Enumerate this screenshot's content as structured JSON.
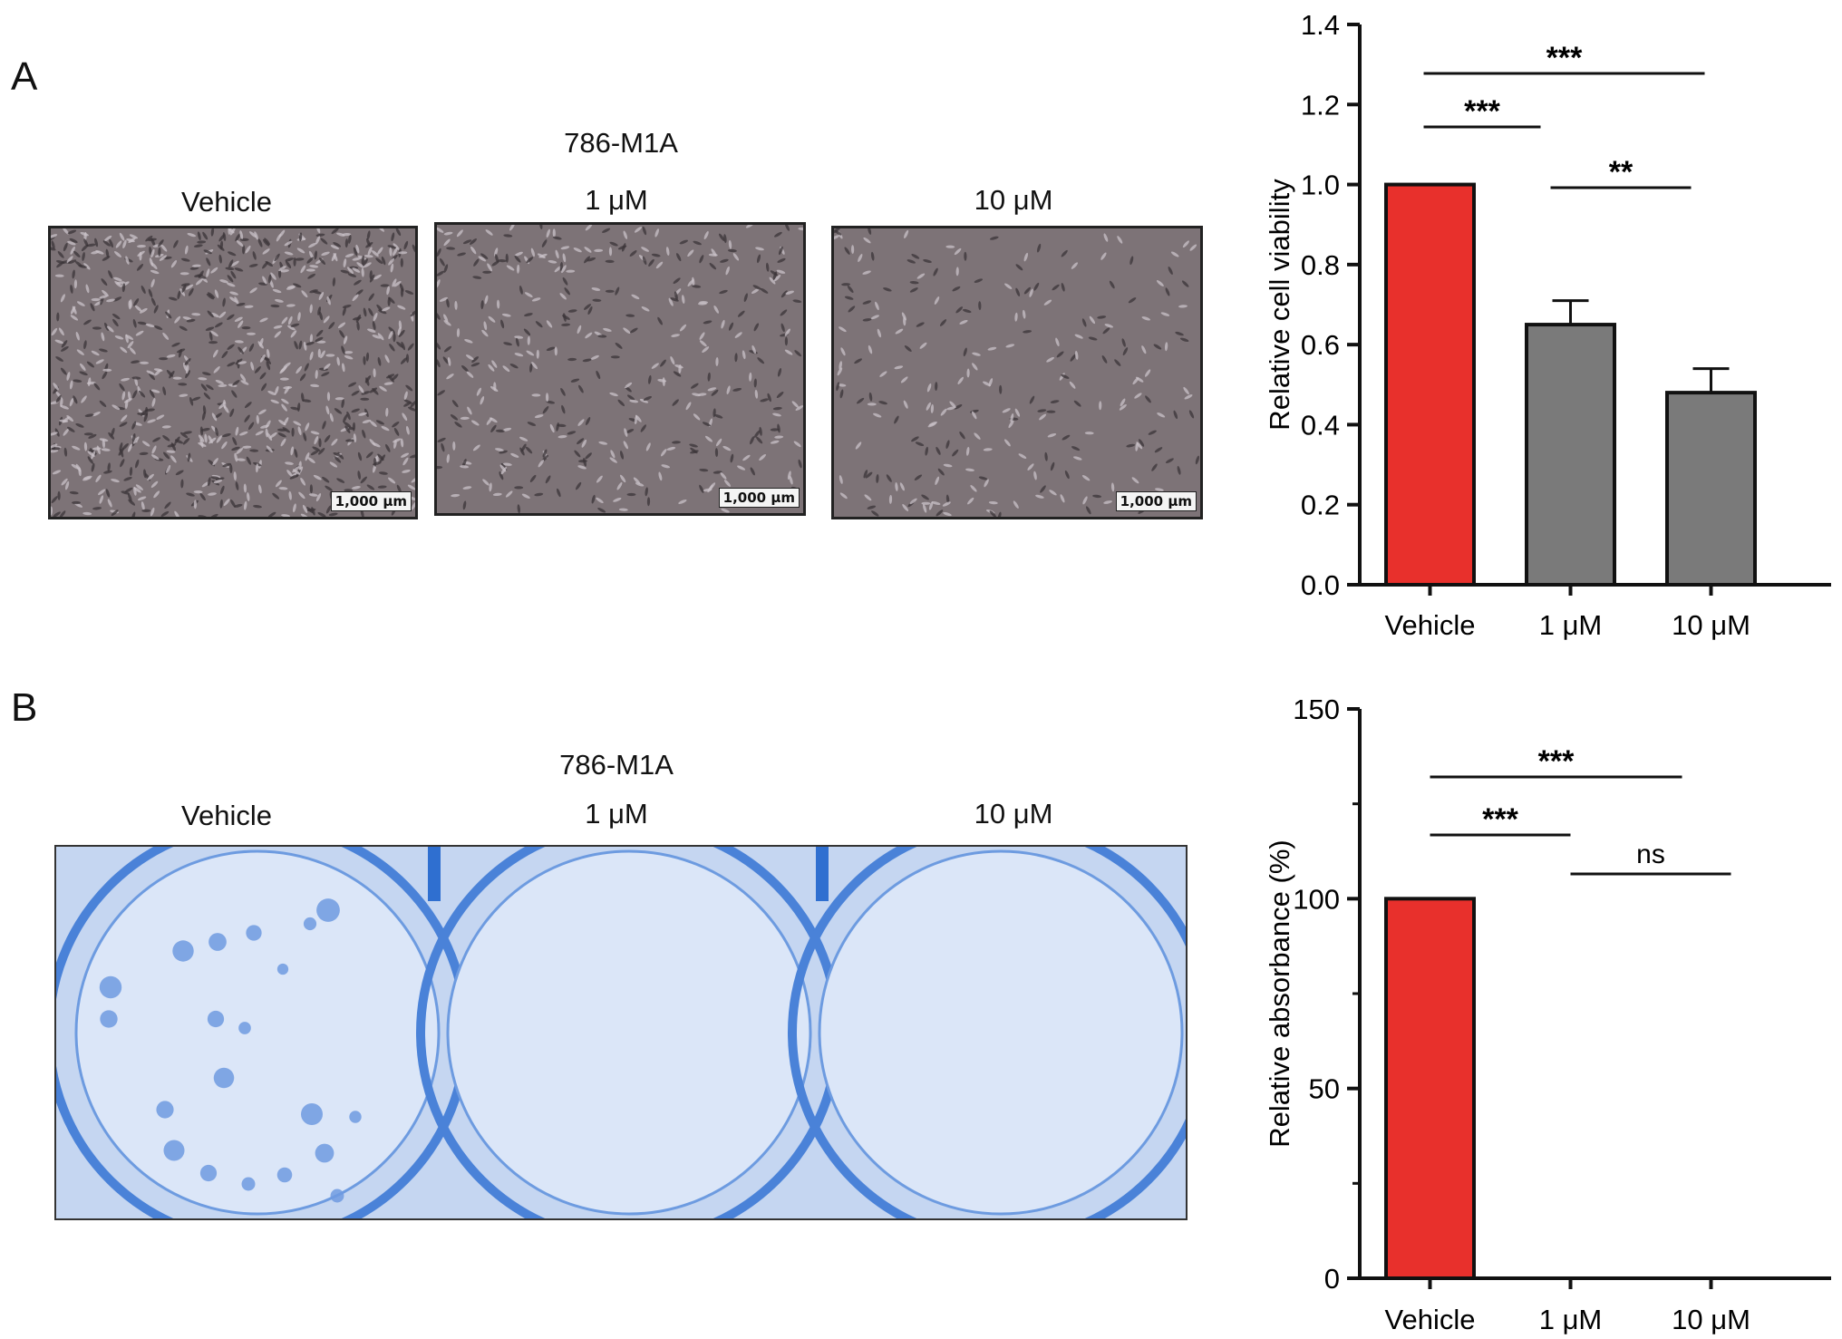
{
  "panel_a": {
    "letter": "A",
    "cell_line": "786-M1A",
    "conditions": [
      "Vehicle",
      "1 μM",
      "10 μM"
    ],
    "scale_bar": "1,000 μm"
  },
  "panel_b": {
    "letter": "B",
    "cell_line": "786-M1A",
    "conditions": [
      "Vehicle",
      "1 μM",
      "10 μM"
    ]
  },
  "colors": {
    "vehicle_bar": "#e8302c",
    "treated_bar": "#7a7a7a",
    "micrograph": "#7d7377",
    "plate": "#c5d6f1",
    "plate_well": "#4a82d8"
  },
  "chart_data": [
    {
      "type": "bar",
      "categories": [
        "Vehicle",
        "1 μM",
        "10 μM"
      ],
      "values": [
        1.0,
        0.65,
        0.48
      ],
      "errors": [
        0,
        0.06,
        0.06
      ],
      "xlabel": "",
      "ylabel": "Relative cell viability",
      "ylim": [
        0,
        1.4
      ],
      "yticks": [
        "0.0",
        "0.2",
        "0.4",
        "0.6",
        "0.8",
        "1.0",
        "1.2",
        "1.4"
      ],
      "bar_colors": [
        "#e8302c",
        "#7a7a7a",
        "#7a7a7a"
      ],
      "significance": [
        {
          "from": 0,
          "to": 2,
          "label": "***"
        },
        {
          "from": 0,
          "to": 1,
          "label": "***"
        },
        {
          "from": 1,
          "to": 2,
          "label": "**"
        }
      ]
    },
    {
      "type": "bar",
      "categories": [
        "Vehicle",
        "1 μM",
        "10 μM"
      ],
      "values": [
        100,
        0,
        0
      ],
      "xlabel": "",
      "ylabel": "Relative absorbance (%)",
      "ylim": [
        0,
        150
      ],
      "yticks": [
        "0",
        "50",
        "100",
        "150"
      ],
      "bar_colors": [
        "#e8302c",
        "#7a7a7a",
        "#7a7a7a"
      ],
      "significance": [
        {
          "from": 0,
          "to": 2,
          "label": "***"
        },
        {
          "from": 0,
          "to": 1,
          "label": "***"
        },
        {
          "from": 1,
          "to": 2,
          "label": "ns"
        }
      ]
    }
  ]
}
